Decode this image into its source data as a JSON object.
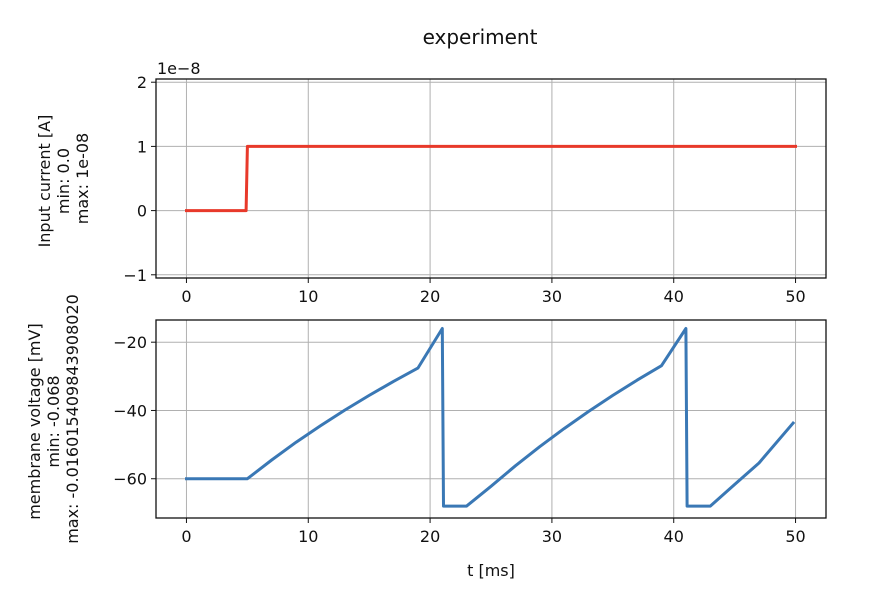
{
  "figure": {
    "title": "experiment"
  },
  "chart_data": [
    {
      "type": "line",
      "title": "experiment",
      "xlabel": "",
      "ylabel_lines": [
        "Input current [A]",
        "min: 0.0",
        "max: 1e-08"
      ],
      "y_offset_text": "1e−8",
      "xlim": [
        -2.5,
        52.5
      ],
      "ylim": [
        -1.05,
        2.05
      ],
      "grid": true,
      "x_ticks": [
        0,
        10,
        20,
        30,
        40,
        50
      ],
      "x_tick_labels": [
        "0",
        "10",
        "20",
        "30",
        "40",
        "50"
      ],
      "y_ticks": [
        -1,
        0,
        1,
        2
      ],
      "y_tick_labels": [
        "−1",
        "0",
        "1",
        "2"
      ],
      "series": [
        {
          "color": "#e8392a",
          "x": [
            0,
            4.9,
            5.0,
            50
          ],
          "y": [
            0,
            0,
            1,
            1
          ]
        }
      ]
    },
    {
      "type": "line",
      "xlabel": "t [ms]",
      "ylabel_lines": [
        "membrane voltage [mV]",
        "min: -0.068",
        "max: -0.016015409843908020"
      ],
      "xlim": [
        -2.5,
        52.5
      ],
      "ylim": [
        -71.5,
        -13.5
      ],
      "grid": true,
      "x_ticks": [
        0,
        10,
        20,
        30,
        40,
        50
      ],
      "x_tick_labels": [
        "0",
        "10",
        "20",
        "30",
        "40",
        "50"
      ],
      "y_ticks": [
        -60,
        -40,
        -20
      ],
      "y_tick_labels": [
        "−60",
        "−40",
        "−20"
      ],
      "series": [
        {
          "color": "#3a78b5",
          "x": [
            0,
            5,
            7,
            9,
            11,
            13,
            15,
            17,
            19,
            21,
            21.1,
            23,
            25,
            27,
            29,
            31,
            33,
            35,
            37,
            39,
            41,
            41.1,
            43,
            45,
            47,
            49.8
          ],
          "y": [
            -60,
            -60,
            -54.5,
            -49.3,
            -44.5,
            -39.9,
            -35.6,
            -31.5,
            -27.6,
            -16.0,
            -68,
            -68,
            -62.2,
            -56.2,
            -50.6,
            -45.3,
            -40.3,
            -35.6,
            -31.1,
            -26.9,
            -16.0,
            -68,
            -68,
            -61.7,
            -55.4,
            -43.7
          ]
        }
      ]
    }
  ]
}
